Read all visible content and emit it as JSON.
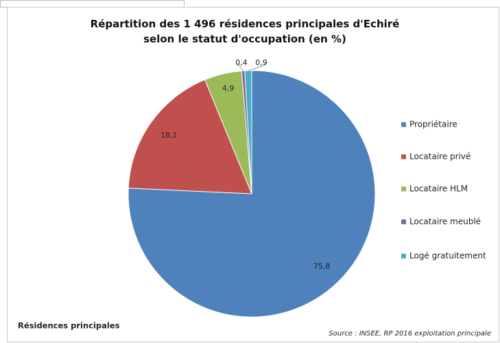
{
  "chart_data": {
    "type": "pie",
    "title": "Répartition des 1 496 résidences principales d'Echiré selon le statut d'occupation (en %)",
    "categories": [
      "Propriétaire",
      "Locataire privé",
      "Locataire HLM",
      "Locataire meublé",
      "Logé gratuitement"
    ],
    "values": [
      75.8,
      18.1,
      4.9,
      0.4,
      0.9
    ],
    "value_labels": [
      "75,8",
      "18,1",
      "4,9",
      "0,4",
      "0,9"
    ],
    "colors": [
      "#4f81bd",
      "#c0504d",
      "#9bbb59",
      "#8064a2",
      "#4bacc6"
    ],
    "legend": "right",
    "footer_left": "Résidences principales",
    "source": "Source : INSEE, RP 2016 exploitation principale"
  }
}
